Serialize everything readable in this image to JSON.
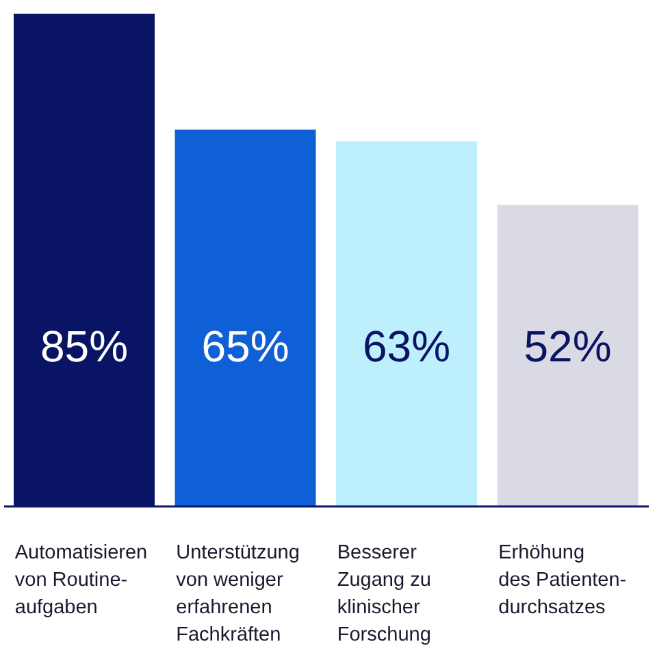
{
  "chart_data": {
    "type": "bar",
    "categories": [
      "Automatisieren\nvon Routine-\naufgaben",
      "Unterstützung\nvon weniger\nerfahrenen\nFachkräften",
      "Besserer\nZugang zu\nklinischer\nForschung",
      "Erhöhung\ndes Patienten-\ndurchsatzes"
    ],
    "values": [
      85,
      65,
      63,
      52
    ],
    "colors": [
      "#0a1464",
      "#0f5fd7",
      "#bdeffc",
      "#dadae4"
    ],
    "value_labels": [
      "85%",
      "65%",
      "63%",
      "52%"
    ]
  }
}
